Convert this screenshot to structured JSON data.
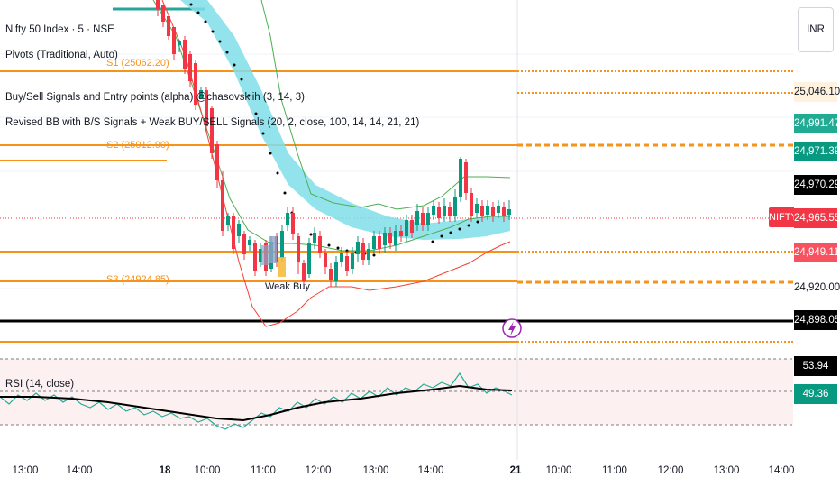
{
  "header": {
    "symbol_title": "Nifty 50 Index · 5 · NSE",
    "indicators": [
      "Pivots (Traditional, Auto)",
      "Buy/Sell Signals and Entry points (alpha) @chasovskiih (3, 14, 3)",
      "Revised BB with B/S Signals + Weak BUY/SELL Signals (20, 2, close, 100, 14, 14, 21, 21)"
    ],
    "rsi_label": "RSI (14, close)"
  },
  "currency_button": "INR",
  "symbol_tag": "NIFTY",
  "pivots": [
    {
      "label": "S1 (25062.20)"
    },
    {
      "label": "S2 (25012.90)"
    },
    {
      "label": "S3 (24924.85)"
    }
  ],
  "weak_buy_label": "Weak Buy",
  "price_axis": [
    {
      "value": "25,046.10",
      "bg": "#fff3e0",
      "fg": "#131722"
    },
    {
      "value": "24,991.47",
      "bg": "#22ab94",
      "fg": "#ffffff"
    },
    {
      "value": "24,971.39",
      "bg": "#089981",
      "fg": "#ffffff"
    },
    {
      "value": "24,970.29",
      "bg": "#000000",
      "fg": "#ffffff"
    },
    {
      "value": "24,965.55",
      "bg": "#f23645",
      "fg": "#ffffff"
    },
    {
      "value": "24,949.11",
      "bg": "#f7525f",
      "fg": "#ffffff"
    },
    {
      "value": "24,920.00",
      "bg": "#ffffff",
      "fg": "#131722"
    },
    {
      "value": "24,898.05",
      "bg": "#000000",
      "fg": "#ffffff"
    },
    {
      "value": "53.94",
      "bg": "#000000",
      "fg": "#ffffff"
    },
    {
      "value": "49.36",
      "bg": "#089981",
      "fg": "#ffffff"
    }
  ],
  "time_axis": [
    "13:00",
    "14:00",
    "18",
    "10:00",
    "11:00",
    "12:00",
    "13:00",
    "14:00",
    "21",
    "10:00",
    "11:00",
    "12:00",
    "13:00",
    "14:00"
  ],
  "colors": {
    "pivot": "#f7931a",
    "bull": "#089981",
    "bear": "#f23645",
    "cloud": "#80deea",
    "bb_upper": "#4caf50",
    "bb_lower": "#f44336",
    "rsi_line": "#22ab94",
    "rsi_ma": "#000000"
  },
  "icons": {
    "event": "lightning-icon"
  }
}
